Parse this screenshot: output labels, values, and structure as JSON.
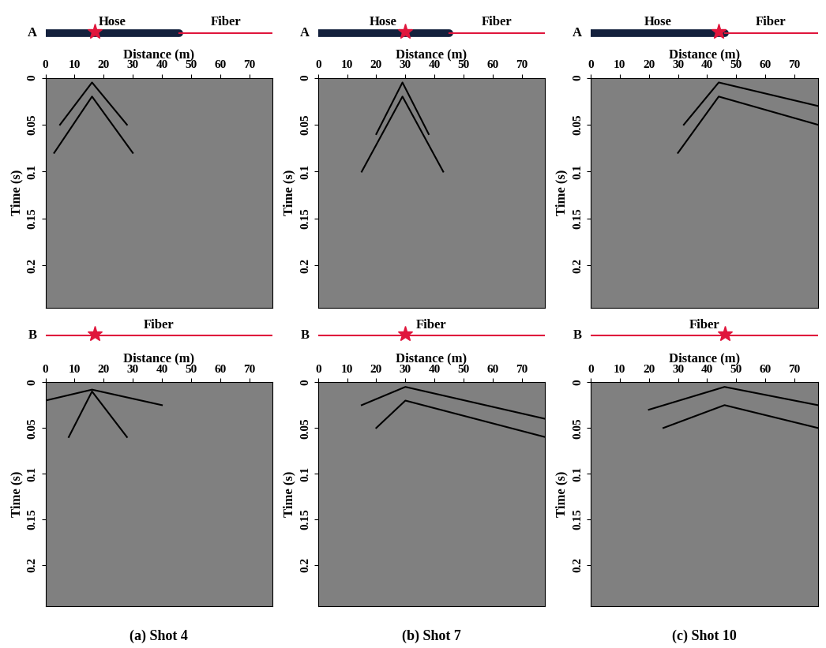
{
  "chart_data": [
    {
      "type": "seismic",
      "xlabel": "Distance (m)",
      "ylabel": "Time (s)",
      "xlim": [
        0,
        78
      ],
      "ylim": [
        0.245,
        0
      ],
      "xticks": [
        0,
        10,
        20,
        30,
        40,
        50,
        60,
        70
      ],
      "yticks": [
        0,
        0.05,
        0.1,
        0.15,
        0.2
      ],
      "color": "#808080",
      "schematic": {
        "row_label": "A",
        "hose_label": "Hose",
        "fiber_label": "Fiber",
        "hose_end": 46,
        "source_x": 17
      },
      "events": [
        {
          "x": [
            5,
            16,
            28
          ],
          "t": [
            0.05,
            0.005,
            0.05
          ]
        },
        {
          "x": [
            3,
            16,
            30
          ],
          "t": [
            0.08,
            0.02,
            0.08
          ]
        }
      ]
    },
    {
      "type": "seismic",
      "xlabel": "Distance (m)",
      "ylabel": "Time (s)",
      "xlim": [
        0,
        78
      ],
      "ylim": [
        0.245,
        0
      ],
      "xticks": [
        0,
        10,
        20,
        30,
        40,
        50,
        60,
        70
      ],
      "yticks": [
        0,
        0.05,
        0.1,
        0.15,
        0.2
      ],
      "color": "#808080",
      "schematic": {
        "row_label": "A",
        "hose_label": "Hose",
        "fiber_label": "Fiber",
        "hose_end": 45,
        "source_x": 30
      },
      "events": [
        {
          "x": [
            20,
            29,
            38
          ],
          "t": [
            0.06,
            0.005,
            0.06
          ]
        },
        {
          "x": [
            15,
            29,
            43
          ],
          "t": [
            0.1,
            0.02,
            0.1
          ]
        }
      ]
    },
    {
      "type": "seismic",
      "xlabel": "Distance (m)",
      "ylabel": "Time (s)",
      "xlim": [
        0,
        78
      ],
      "ylim": [
        0.245,
        0
      ],
      "xticks": [
        0,
        10,
        20,
        30,
        40,
        50,
        60,
        70
      ],
      "yticks": [
        0,
        0.05,
        0.1,
        0.15,
        0.2
      ],
      "color": "#808080",
      "schematic": {
        "row_label": "A",
        "hose_label": "Hose",
        "fiber_label": "Fiber",
        "hose_end": 46,
        "source_x": 44
      },
      "events": [
        {
          "x": [
            32,
            44,
            78
          ],
          "t": [
            0.05,
            0.005,
            0.03
          ]
        },
        {
          "x": [
            30,
            44,
            78
          ],
          "t": [
            0.08,
            0.02,
            0.05
          ]
        }
      ]
    },
    {
      "type": "seismic",
      "xlabel": "Distance (m)",
      "ylabel": "Time (s)",
      "xlim": [
        0,
        78
      ],
      "ylim": [
        0.245,
        0
      ],
      "xticks": [
        0,
        10,
        20,
        30,
        40,
        50,
        60,
        70
      ],
      "yticks": [
        0,
        0.05,
        0.1,
        0.15,
        0.2
      ],
      "color": "#808080",
      "schematic": {
        "row_label": "B",
        "fiber_label": "Fiber",
        "source_x": 17
      },
      "events": [
        {
          "x": [
            0,
            16,
            40
          ],
          "t": [
            0.02,
            0.008,
            0.025
          ]
        },
        {
          "x": [
            8,
            16,
            28
          ],
          "t": [
            0.06,
            0.01,
            0.06
          ]
        }
      ],
      "caption": "(a) Shot 4"
    },
    {
      "type": "seismic",
      "xlabel": "Distance (m)",
      "ylabel": "Time (s)",
      "xlim": [
        0,
        78
      ],
      "ylim": [
        0.245,
        0
      ],
      "xticks": [
        0,
        10,
        20,
        30,
        40,
        50,
        60,
        70
      ],
      "yticks": [
        0,
        0.05,
        0.1,
        0.15,
        0.2
      ],
      "color": "#808080",
      "schematic": {
        "row_label": "B",
        "fiber_label": "Fiber",
        "source_x": 30
      },
      "events": [
        {
          "x": [
            15,
            30,
            78
          ],
          "t": [
            0.025,
            0.005,
            0.04
          ]
        },
        {
          "x": [
            20,
            30,
            78
          ],
          "t": [
            0.05,
            0.02,
            0.06
          ]
        }
      ],
      "caption": "(b) Shot 7"
    },
    {
      "type": "seismic",
      "xlabel": "Distance (m)",
      "ylabel": "Time (s)",
      "xlim": [
        0,
        78
      ],
      "ylim": [
        0.245,
        0
      ],
      "xticks": [
        0,
        10,
        20,
        30,
        40,
        50,
        60,
        70
      ],
      "yticks": [
        0,
        0.05,
        0.1,
        0.15,
        0.2
      ],
      "color": "#808080",
      "schematic": {
        "row_label": "B",
        "fiber_label": "Fiber",
        "source_x": 46
      },
      "events": [
        {
          "x": [
            20,
            46,
            78
          ],
          "t": [
            0.03,
            0.005,
            0.025
          ]
        },
        {
          "x": [
            25,
            46,
            78
          ],
          "t": [
            0.05,
            0.025,
            0.05
          ]
        }
      ],
      "caption": "(c) Shot 10"
    }
  ]
}
